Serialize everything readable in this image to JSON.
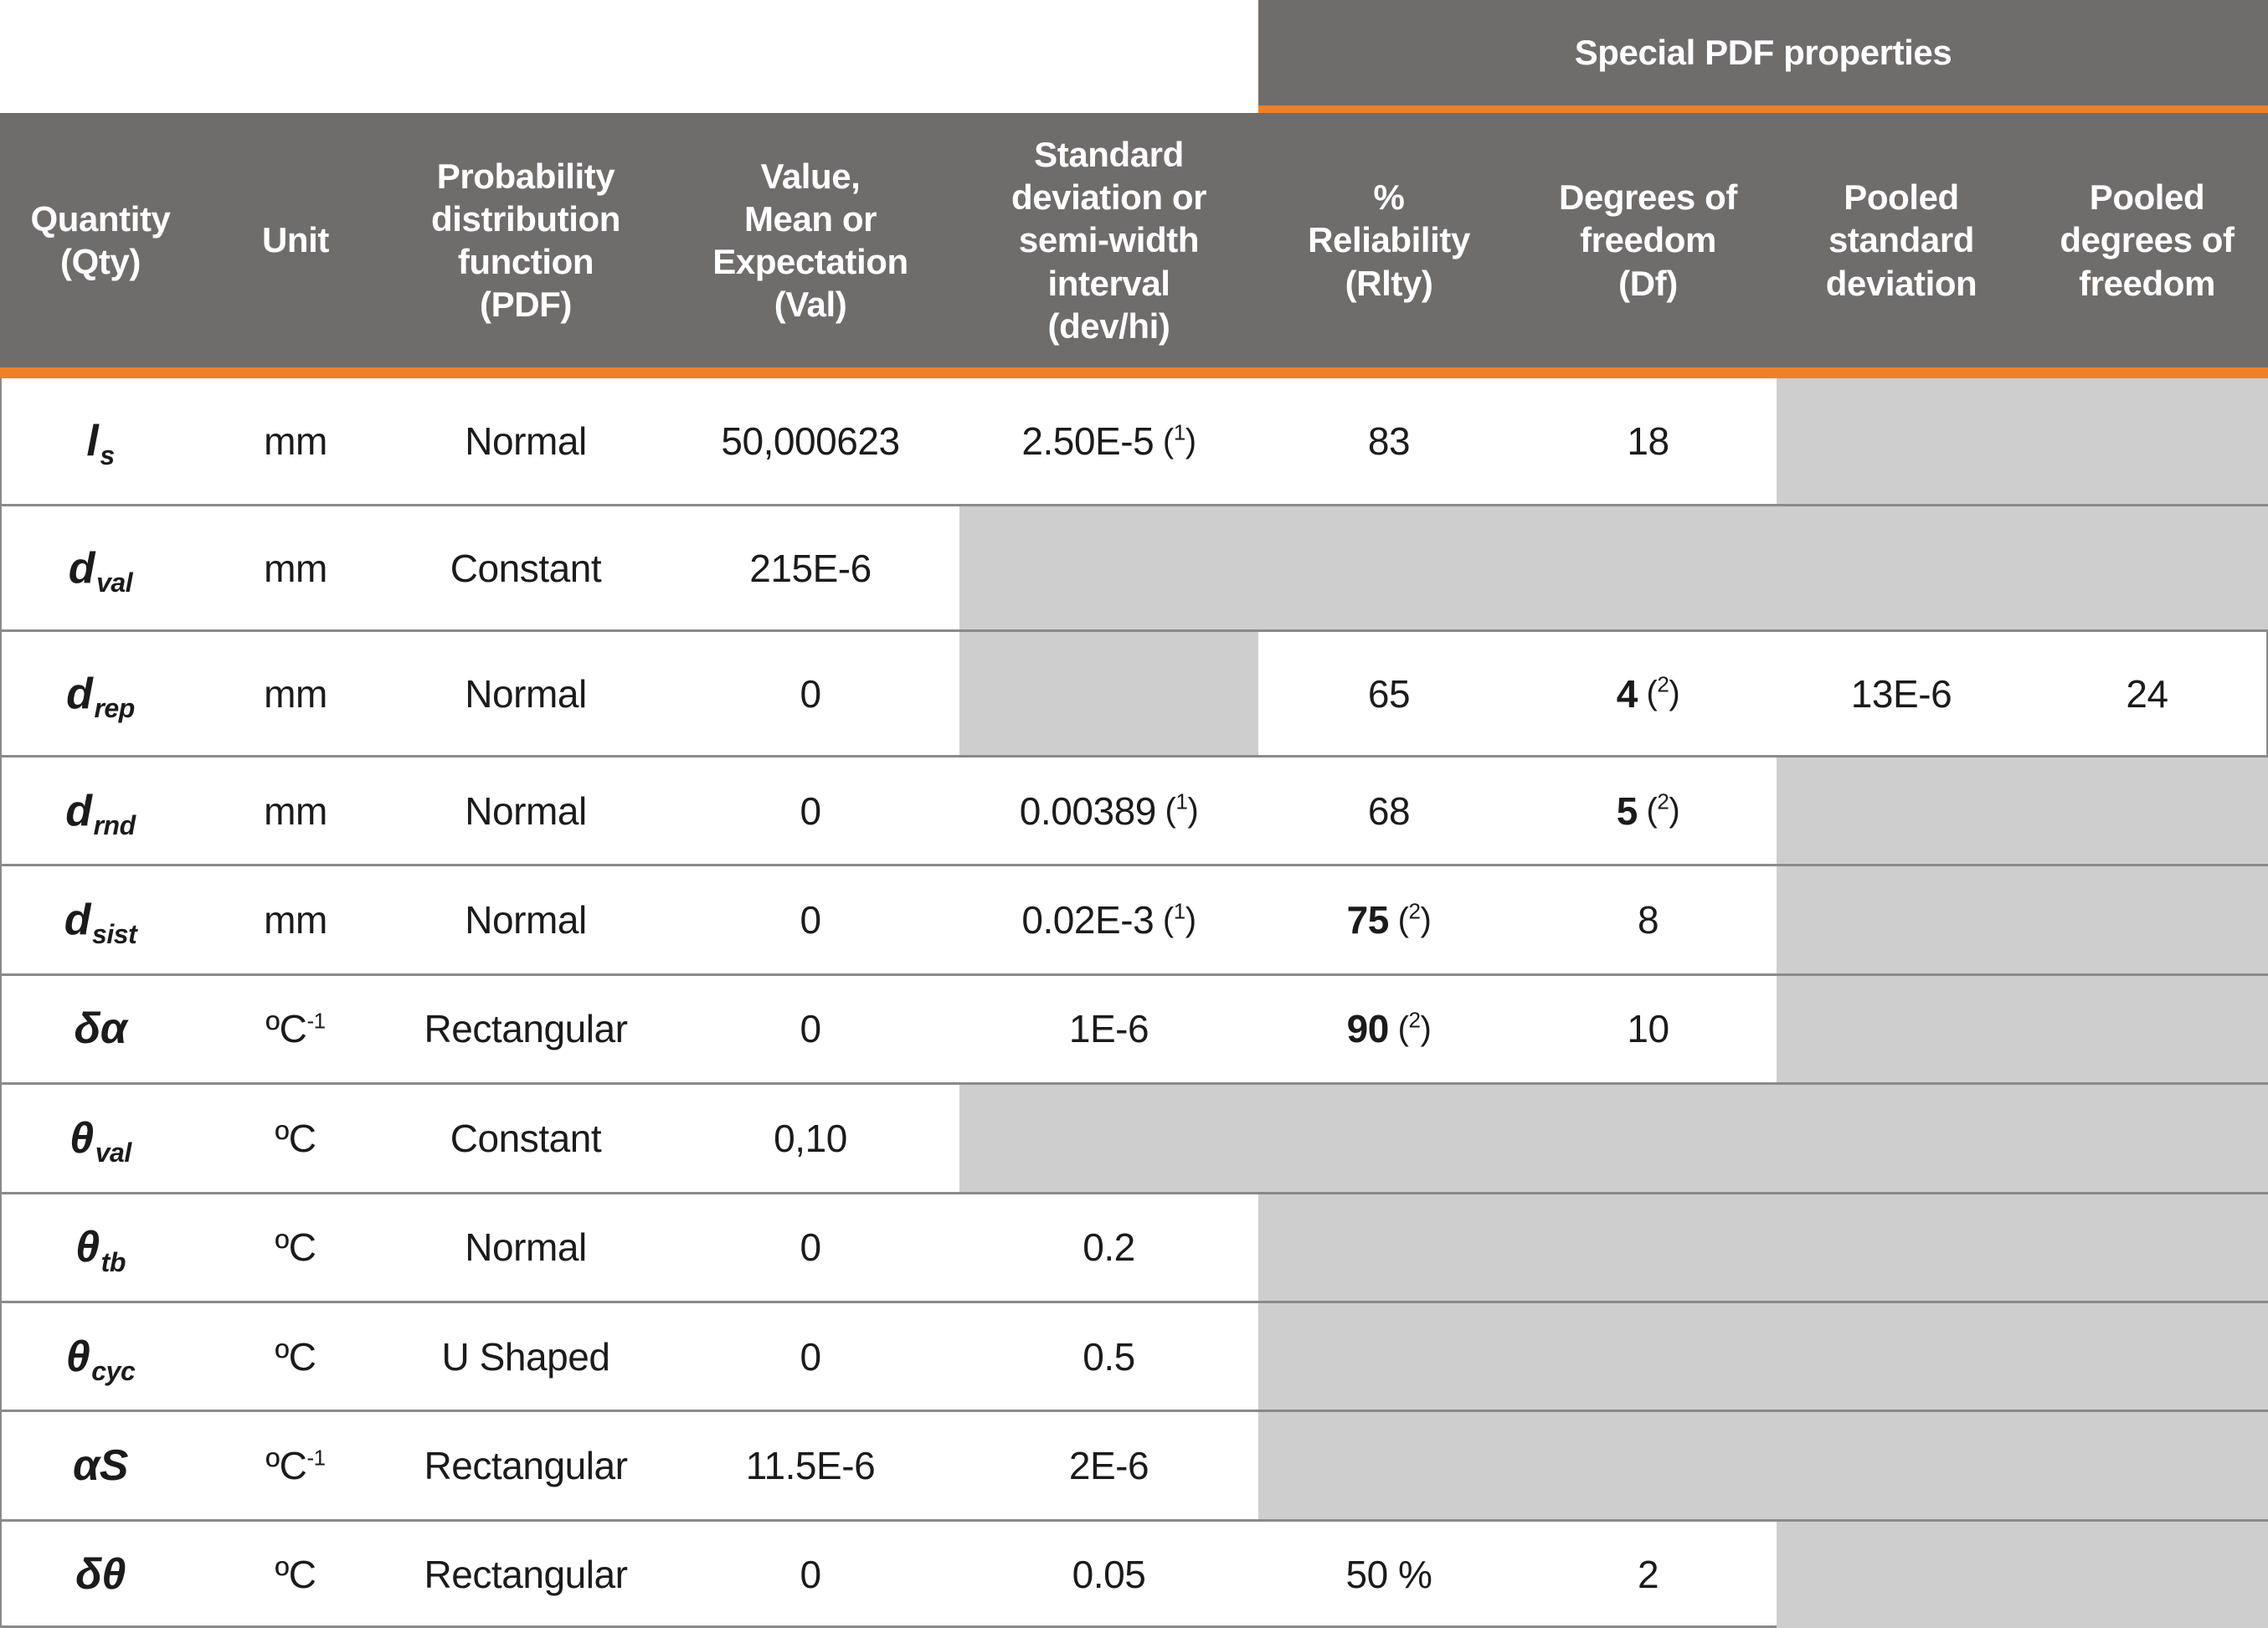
{
  "colors": {
    "header_bg": "#6F6C6C",
    "accent_orange": "#EE8026",
    "disabled_cell_gray": "#CFCECE",
    "separator_line": "#8A8A8A",
    "body_text": "#1B1B1B",
    "header_text": "#FFFFFF"
  },
  "table": {
    "special_header": "Special PDF properties",
    "columns": [
      {
        "key": "qty",
        "label": "Quantity\n(Qty)"
      },
      {
        "key": "unit",
        "label": "Unit"
      },
      {
        "key": "pdf",
        "label": "Probability\ndistribution\nfunction\n(PDF)"
      },
      {
        "key": "val",
        "label": "Value,\nMean or\nExpectation\n(Val)"
      },
      {
        "key": "dev",
        "label": "Standard\ndeviation or\nsemi-width\ninterval\n(dev/hi)"
      },
      {
        "key": "rlty",
        "label": "%\nReliability\n(Rlty)"
      },
      {
        "key": "df",
        "label": "Degrees of\nfreedom\n(Df)"
      },
      {
        "key": "pooled_std",
        "label": "Pooled\nstandard\ndeviation"
      },
      {
        "key": "pooled_df",
        "label": "Pooled\ndegrees of\nfreedom"
      }
    ],
    "rows": [
      {
        "qty": {
          "sym": "l",
          "sub": "s"
        },
        "unit": {
          "base": "mm"
        },
        "pdf": "Normal",
        "val": "50,000623",
        "dev": {
          "t": "2.50E-5",
          "note": "1"
        },
        "rlty": {
          "t": "83"
        },
        "df": {
          "t": "18"
        },
        "gray": [
          "pooled_std",
          "pooled_df"
        ]
      },
      {
        "qty": {
          "sym": "d",
          "sub": "val"
        },
        "unit": {
          "base": "mm"
        },
        "pdf": "Constant",
        "val": "215E-6",
        "gray": [
          "dev",
          "rlty",
          "df",
          "pooled_std",
          "pooled_df"
        ]
      },
      {
        "qty": {
          "sym": "d",
          "sub": "rep"
        },
        "unit": {
          "base": "mm"
        },
        "pdf": "Normal",
        "val": "0",
        "rlty": {
          "t": "65"
        },
        "df": {
          "t": "4",
          "b": true,
          "note": "2"
        },
        "pooled_std": {
          "t": "13E-6"
        },
        "pooled_df": {
          "t": "24"
        },
        "gray": [
          "dev"
        ]
      },
      {
        "qty": {
          "sym": "d",
          "sub": "rnd"
        },
        "unit": {
          "base": "mm"
        },
        "pdf": "Normal",
        "val": "0",
        "dev": {
          "t": "0.00389",
          "note": "1"
        },
        "rlty": {
          "t": "68"
        },
        "df": {
          "t": "5",
          "b": true,
          "note": "2"
        },
        "gray": [
          "pooled_std",
          "pooled_df"
        ]
      },
      {
        "qty": {
          "sym": "d",
          "sub": "sist"
        },
        "unit": {
          "base": "mm"
        },
        "pdf": "Normal",
        "val": "0",
        "dev": {
          "t": "0.02E-3",
          "note": "1"
        },
        "rlty": {
          "t": "75",
          "b": true,
          "note": "2"
        },
        "df": {
          "t": "8"
        },
        "gray": [
          "pooled_std",
          "pooled_df"
        ]
      },
      {
        "qty": {
          "sym": "δα"
        },
        "unit": {
          "base": "ºC",
          "sup": "-1"
        },
        "pdf": "Rectangular",
        "val": "0",
        "dev": {
          "t": "1E-6"
        },
        "rlty": {
          "t": "90",
          "b": true,
          "note": "2"
        },
        "df": {
          "t": "10"
        },
        "gray": [
          "pooled_std",
          "pooled_df"
        ]
      },
      {
        "qty": {
          "sym": "θ",
          "sub": "val"
        },
        "unit": {
          "base": "ºC"
        },
        "pdf": "Constant",
        "val": "0,10",
        "gray": [
          "dev",
          "rlty",
          "df",
          "pooled_std",
          "pooled_df"
        ]
      },
      {
        "qty": {
          "sym": "θ",
          "sub": "tb"
        },
        "unit": {
          "base": "ºC"
        },
        "pdf": "Normal",
        "val": "0",
        "dev": {
          "t": "0.2"
        },
        "gray": [
          "rlty",
          "df",
          "pooled_std",
          "pooled_df"
        ]
      },
      {
        "qty": {
          "sym": "θ",
          "sub": "cyc"
        },
        "unit": {
          "base": "ºC"
        },
        "pdf": "U Shaped",
        "val": "0",
        "dev": {
          "t": "0.5"
        },
        "gray": [
          "rlty",
          "df",
          "pooled_std",
          "pooled_df"
        ]
      },
      {
        "qty": {
          "sym": "αS"
        },
        "unit": {
          "base": "ºC",
          "sup": "-1"
        },
        "pdf": "Rectangular",
        "val": "11.5E-6",
        "dev": {
          "t": "2E-6"
        },
        "gray": [
          "rlty",
          "df",
          "pooled_std",
          "pooled_df"
        ]
      },
      {
        "qty": {
          "sym": "δθ"
        },
        "unit": {
          "base": "ºC"
        },
        "pdf": "Rectangular",
        "val": "0",
        "dev": {
          "t": "0.05"
        },
        "rlty": {
          "t": "50 %"
        },
        "df": {
          "t": "2"
        },
        "gray": [
          "pooled_std",
          "pooled_df"
        ]
      }
    ]
  }
}
